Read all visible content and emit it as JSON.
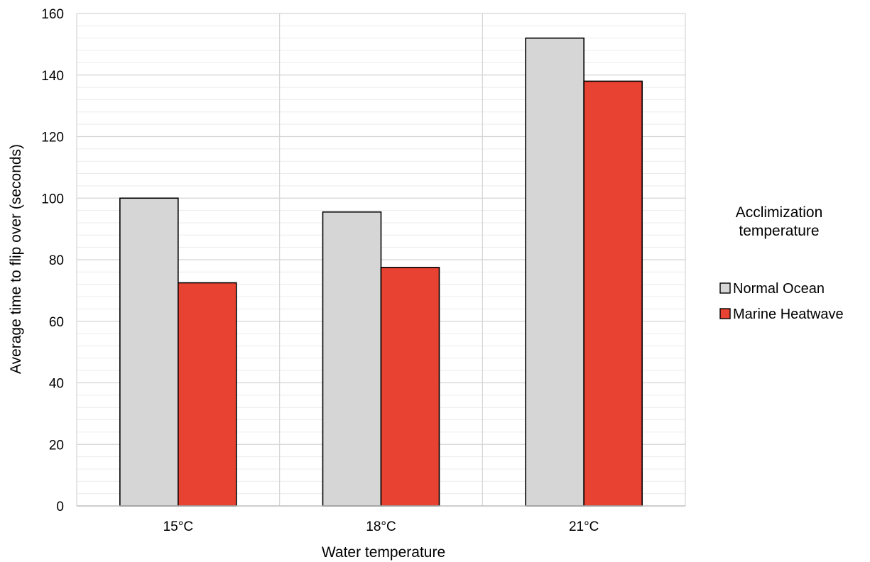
{
  "chart_data": {
    "type": "bar",
    "title": "",
    "xlabel": "Water temperature",
    "ylabel": "Average time to flip over (seconds)",
    "categories": [
      "15°C",
      "18°C",
      "21°C"
    ],
    "ylim": [
      0,
      160
    ],
    "y_major_step": 20,
    "y_minor_step": 4,
    "y_ticks": [
      "0",
      "20",
      "40",
      "60",
      "80",
      "100",
      "120",
      "140",
      "160"
    ],
    "grid": true,
    "series": [
      {
        "name": "Normal Ocean",
        "color": "#d6d6d6",
        "values": [
          100,
          95.5,
          152
        ]
      },
      {
        "name": "Marine Heatwave",
        "color": "#e84232",
        "values": [
          72.5,
          77.5,
          138
        ]
      }
    ],
    "legend": {
      "title_line1": "Acclimization",
      "title_line2": "temperature",
      "position": "right"
    }
  }
}
